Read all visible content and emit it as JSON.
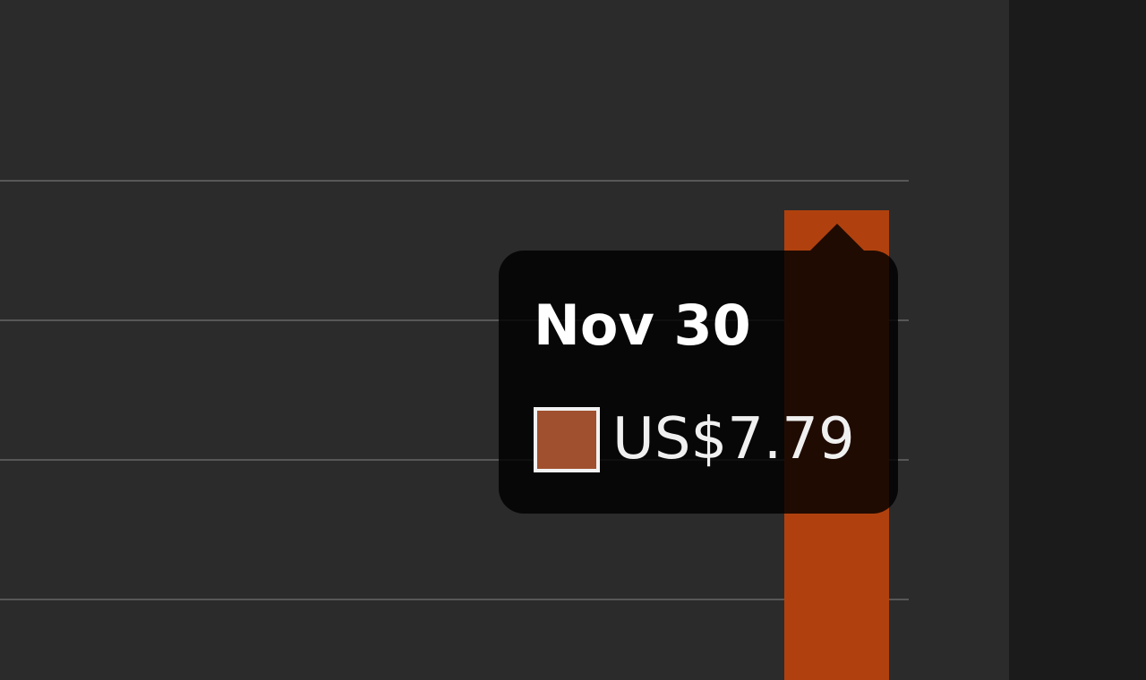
{
  "tooltip": {
    "date": "Nov 30",
    "value": "US$7.79"
  }
}
